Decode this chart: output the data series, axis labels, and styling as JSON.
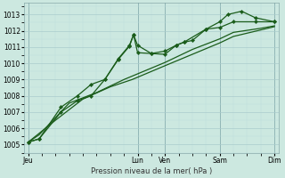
{
  "background_color": "#cce8e0",
  "grid_color_major": "#aacccc",
  "grid_color_minor": "#bbdddd",
  "line_color": "#1a5c1a",
  "ylim": [
    1004.5,
    1013.7
  ],
  "xlim": [
    -0.15,
    9.15
  ],
  "ylabel_ticks": [
    1005,
    1006,
    1007,
    1008,
    1009,
    1010,
    1011,
    1012,
    1013
  ],
  "xlabel": "Pression niveau de la mer( hPa )",
  "day_labels": [
    "Jeu",
    "Lun",
    "Ven",
    "Sam",
    "Dim"
  ],
  "day_positions": [
    0,
    4.0,
    5.0,
    7.0,
    9.0
  ],
  "s1_x": [
    0,
    0.4,
    1.2,
    1.8,
    2.3,
    2.8,
    3.3,
    3.7,
    3.85,
    4.0,
    4.5,
    5.0,
    5.4,
    5.7,
    6.0,
    6.5,
    7.0,
    7.3,
    7.8,
    8.3,
    9.0
  ],
  "s1_y": [
    1005.15,
    1005.35,
    1007.0,
    1007.7,
    1008.0,
    1009.0,
    1010.25,
    1011.05,
    1011.75,
    1011.1,
    1010.6,
    1010.55,
    1011.1,
    1011.3,
    1011.4,
    1012.1,
    1012.55,
    1013.0,
    1013.2,
    1012.8,
    1012.55
  ],
  "s2_x": [
    0,
    0.4,
    1.2,
    1.8,
    2.3,
    2.8,
    3.3,
    3.7,
    3.85,
    4.0,
    4.5,
    5.0,
    5.4,
    5.7,
    6.5,
    7.0,
    7.5,
    8.3,
    9.0
  ],
  "s2_y": [
    1005.15,
    1005.35,
    1007.3,
    1008.0,
    1008.7,
    1009.0,
    1010.3,
    1011.1,
    1011.75,
    1010.65,
    1010.6,
    1010.75,
    1011.1,
    1011.3,
    1012.1,
    1012.2,
    1012.55,
    1012.55,
    1012.55
  ],
  "s3_x": [
    0,
    0.4,
    1.5,
    2.5,
    3.5,
    4.0,
    5.0,
    6.0,
    7.0,
    7.5,
    8.5,
    9.0
  ],
  "s3_y": [
    1005.15,
    1005.6,
    1007.55,
    1008.2,
    1009.0,
    1009.35,
    1010.05,
    1010.85,
    1011.5,
    1011.9,
    1012.15,
    1012.3
  ],
  "s4_x": [
    0,
    1.0,
    2.0,
    3.0,
    3.8,
    5.0,
    6.0,
    7.0,
    7.5,
    8.5,
    9.0
  ],
  "s4_y": [
    1005.15,
    1006.5,
    1007.8,
    1008.55,
    1009.0,
    1009.85,
    1010.55,
    1011.25,
    1011.65,
    1012.05,
    1012.25
  ],
  "xlabel_fontsize": 6.0,
  "tick_fontsize": 5.5,
  "linewidth_marker": 0.9,
  "linewidth_plain": 0.9,
  "markersize": 2.2
}
